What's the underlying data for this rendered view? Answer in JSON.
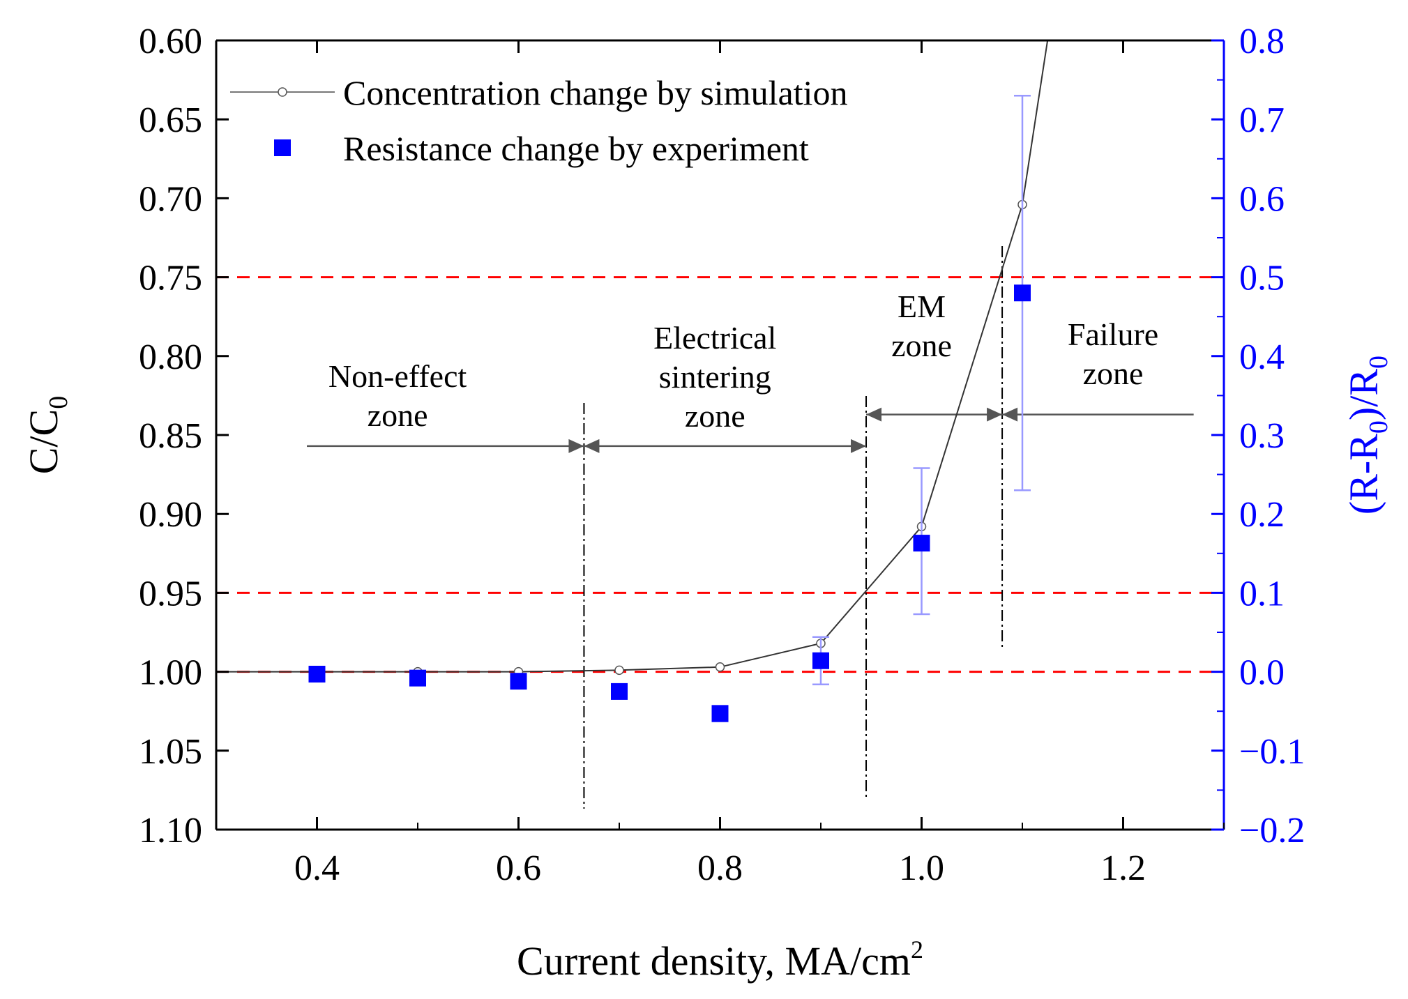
{
  "chart_data": {
    "type": "line",
    "title": "",
    "xlabel": "Current density, MA/cm",
    "xlabel_sup": "2",
    "ylabel_left_main": "C/C",
    "ylabel_left_sub": "0",
    "ylabel_right_parts": [
      "(R-R",
      "0",
      ")/R",
      "0"
    ],
    "xlim": [
      0.3,
      1.3
    ],
    "ylim_left": [
      1.1,
      0.6
    ],
    "ylim_right": [
      -0.2,
      0.8
    ],
    "x_ticks": [
      0.4,
      0.6,
      0.8,
      1.0,
      1.2
    ],
    "x_tick_labels": [
      "0.4",
      "0.6",
      "0.8",
      "1.0",
      "1.2"
    ],
    "y_left_ticks": [
      0.6,
      0.65,
      0.7,
      0.75,
      0.8,
      0.85,
      0.9,
      0.95,
      1.0,
      1.05,
      1.1
    ],
    "y_left_tick_labels": [
      "0.60",
      "0.65",
      "0.70",
      "0.75",
      "0.80",
      "0.85",
      "0.90",
      "0.95",
      "1.00",
      "1.05",
      "1.10"
    ],
    "y_right_ticks": [
      0.8,
      0.7,
      0.6,
      0.5,
      0.4,
      0.3,
      0.2,
      0.1,
      0.0,
      -0.1,
      -0.2
    ],
    "y_right_tick_labels": [
      "0.8",
      "0.7",
      "0.6",
      "0.5",
      "0.4",
      "0.3",
      "0.2",
      "0.1",
      "0.0",
      "−0.1",
      "−0.2"
    ],
    "series": [
      {
        "name": "Concentration change by simulation",
        "axis": "left",
        "marker": "open-circle",
        "color": "#000000",
        "x": [
          0.3,
          0.4,
          0.5,
          0.6,
          0.7,
          0.8,
          0.9,
          1.0,
          1.1,
          1.125
        ],
        "y": [
          1.0,
          1.0,
          1.0,
          1.0,
          0.999,
          0.997,
          0.982,
          0.908,
          0.704,
          0.6
        ]
      },
      {
        "name": "Resistance change by experiment",
        "axis": "right",
        "marker": "filled-square",
        "color": "#0000ff",
        "x": [
          0.4,
          0.5,
          0.6,
          0.7,
          0.8,
          0.9,
          1.0,
          1.1
        ],
        "y": [
          -0.003,
          -0.008,
          -0.012,
          -0.025,
          -0.053,
          0.014,
          0.163,
          0.48
        ],
        "err_low": [
          0.003,
          0.004,
          0.004,
          0.008,
          0.01,
          0.03,
          0.09,
          0.25
        ],
        "err_high": [
          0.003,
          0.004,
          0.004,
          0.008,
          0.01,
          0.03,
          0.095,
          0.25
        ]
      }
    ],
    "reference_lines_right": [
      0.5,
      0.1,
      0.0
    ],
    "zone_boundaries_x": [
      0.665,
      0.945,
      1.08
    ],
    "zones": [
      {
        "lines": [
          "Non-effect",
          "zone"
        ],
        "x": 0.48
      },
      {
        "lines": [
          "Electrical",
          "sintering",
          "zone"
        ],
        "x": 0.795
      },
      {
        "lines": [
          "EM",
          "zone"
        ],
        "x": 1.0
      },
      {
        "lines": [
          "Failure",
          "zone"
        ],
        "x": 1.19
      }
    ],
    "zone_arrows": [
      {
        "x1": 0.39,
        "x2": 0.665,
        "y_left": 0.857
      },
      {
        "x1": 0.665,
        "x2": 0.945,
        "y_left": 0.857
      },
      {
        "x1": 0.945,
        "x2": 1.08,
        "y_left": 0.837
      },
      {
        "x1": 1.08,
        "x2": 1.27,
        "y_left": 0.837
      }
    ],
    "legend": [
      "Concentration change by simulation",
      "Resistance change by experiment"
    ],
    "colors": {
      "reference_line": "#ff0000",
      "right_axis": "#0000ff",
      "error_bar": "#9999ff",
      "boundary": "#000000",
      "arrow": "#555555"
    }
  }
}
